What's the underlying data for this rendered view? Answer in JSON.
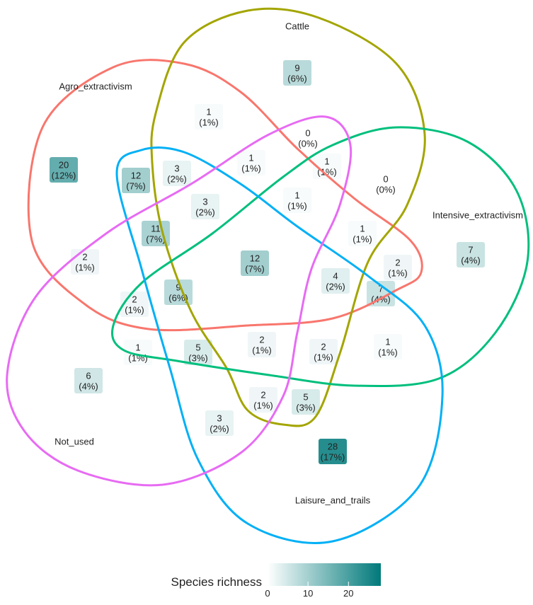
{
  "sets": [
    {
      "name": "Agro_extractivism",
      "color": "#f8766d"
    },
    {
      "name": "Cattle",
      "color": "#a3a500"
    },
    {
      "name": "Intensive_extractivism",
      "color": "#00bf7d"
    },
    {
      "name": "Laisure_and_trails",
      "color": "#00b0f6"
    },
    {
      "name": "Not_used",
      "color": "#e76bf3"
    }
  ],
  "regions": [
    {
      "count": 9,
      "percent": "(6%)"
    },
    {
      "count": 1,
      "percent": "(1%)"
    },
    {
      "count": 0,
      "percent": "(0%)"
    },
    {
      "count": 20,
      "percent": "(12%)"
    },
    {
      "count": 12,
      "percent": "(7%)"
    },
    {
      "count": 3,
      "percent": "(2%)"
    },
    {
      "count": 1,
      "percent": "(1%)"
    },
    {
      "count": 1,
      "percent": "(1%)"
    },
    {
      "count": 0,
      "percent": "(0%)"
    },
    {
      "count": 3,
      "percent": "(2%)"
    },
    {
      "count": 1,
      "percent": "(1%)"
    },
    {
      "count": 7,
      "percent": "(4%)"
    },
    {
      "count": 11,
      "percent": "(7%)"
    },
    {
      "count": 12,
      "percent": "(7%)"
    },
    {
      "count": 1,
      "percent": "(1%)"
    },
    {
      "count": 2,
      "percent": "(1%)"
    },
    {
      "count": 2,
      "percent": "(1%)"
    },
    {
      "count": 4,
      "percent": "(2%)"
    },
    {
      "count": 7,
      "percent": "(4%)"
    },
    {
      "count": 9,
      "percent": "(6%)"
    },
    {
      "count": 2,
      "percent": "(1%)"
    },
    {
      "count": 1,
      "percent": "(1%)"
    },
    {
      "count": 5,
      "percent": "(3%)"
    },
    {
      "count": 2,
      "percent": "(1%)"
    },
    {
      "count": 2,
      "percent": "(1%)"
    },
    {
      "count": 1,
      "percent": "(1%)"
    },
    {
      "count": 6,
      "percent": "(4%)"
    },
    {
      "count": 2,
      "percent": "(1%)"
    },
    {
      "count": 5,
      "percent": "(3%)"
    },
    {
      "count": 3,
      "percent": "(2%)"
    },
    {
      "count": 28,
      "percent": "(17%)"
    }
  ],
  "legend": {
    "title": "Species richness",
    "low_color": "#ffffff",
    "high_color": "#00797a",
    "lim": [
      0,
      28
    ],
    "ticks": [
      0,
      10,
      20
    ]
  }
}
